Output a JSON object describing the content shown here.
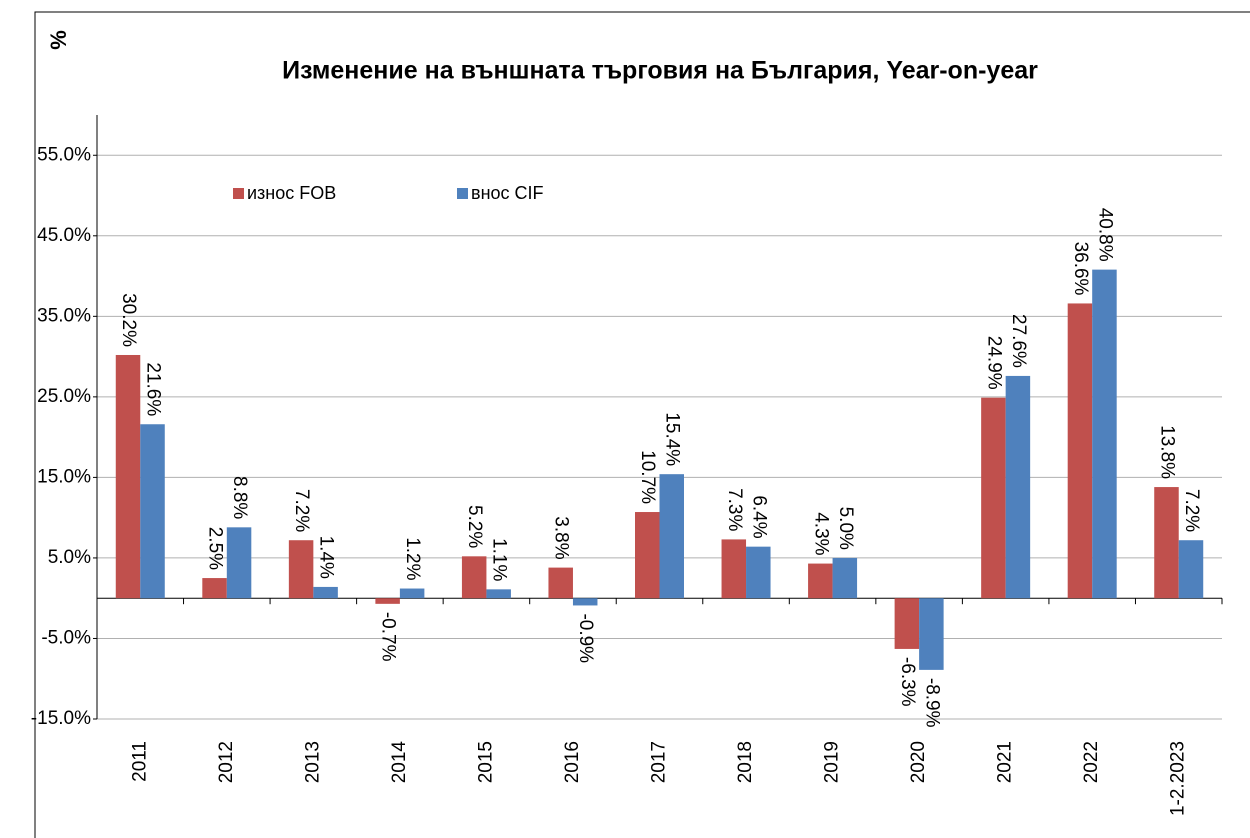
{
  "chart_data": {
    "type": "bar",
    "title": "Изменение на външната търговия на България, Year-on-year",
    "ylabel": "%",
    "categories": [
      "2011",
      "2012",
      "2013",
      "2014",
      "2015",
      "2016",
      "2017",
      "2018",
      "2019",
      "2020",
      "2021",
      "2022",
      "1-2.2023"
    ],
    "series": [
      {
        "name": "износ FOB",
        "color": "#c0504d",
        "label_color": "#ff0000",
        "values": [
          30.2,
          2.5,
          7.2,
          -0.7,
          5.2,
          3.8,
          10.7,
          7.3,
          4.3,
          -6.3,
          24.9,
          36.6,
          13.8
        ],
        "value_labels": [
          "30.2%",
          "2.5%",
          "7.2%",
          "-0.7%",
          "5.2%",
          "3.8%",
          "10.7%",
          "7.3%",
          "4.3%",
          "-6.3%",
          "24.9%",
          "36.6%",
          "13.8%"
        ]
      },
      {
        "name": "внос CIF",
        "color": "#4f81bd",
        "label_color": "#0000ff",
        "values": [
          21.6,
          8.8,
          1.4,
          1.2,
          1.1,
          -0.9,
          15.4,
          6.4,
          5.0,
          -8.9,
          27.6,
          40.8,
          7.2
        ],
        "value_labels": [
          "21.6%",
          "8.8%",
          "1.4%",
          "1.2%",
          "1.1%",
          "-0.9%",
          "15.4%",
          "6.4%",
          "5.0%",
          "-8.9%",
          "27.6%",
          "40.8%",
          "7.2%"
        ]
      }
    ],
    "ylim": [
      -15,
      60
    ],
    "yticks": [
      {
        "value": -15,
        "label": "-15.0%"
      },
      {
        "value": -5,
        "label": "-5.0%"
      },
      {
        "value": 5,
        "label": "5.0%"
      },
      {
        "value": 15,
        "label": "15.0%"
      },
      {
        "value": 25,
        "label": "25.0%"
      },
      {
        "value": 35,
        "label": "35.0%"
      },
      {
        "value": 45,
        "label": "45.0%"
      },
      {
        "value": 55,
        "label": "55.0%"
      }
    ],
    "grid": true
  }
}
